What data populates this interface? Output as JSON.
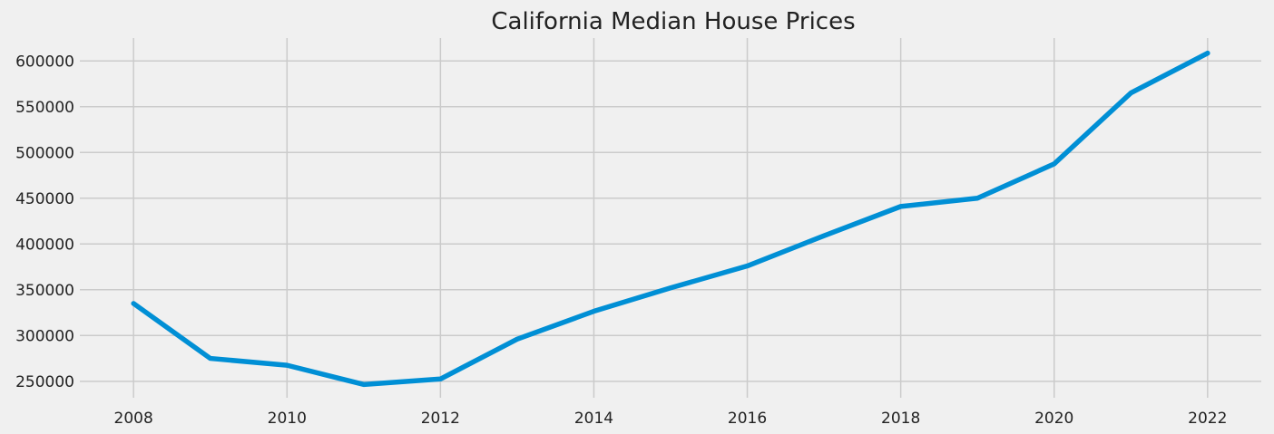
{
  "chart_data": {
    "type": "line",
    "title": "California Median House Prices",
    "xlabel": "",
    "ylabel": "",
    "x": [
      2008,
      2009,
      2010,
      2011,
      2012,
      2013,
      2014,
      2015,
      2016,
      2017,
      2018,
      2019,
      2020,
      2021,
      2022
    ],
    "series": [
      {
        "values": [
          335000,
          275000,
          267500,
          246500,
          252500,
          296000,
          326500,
          352000,
          376000,
          409000,
          441000,
          450000,
          487500,
          565000,
          608500
        ],
        "color": "#008fd5"
      }
    ],
    "xlim": [
      2007.3,
      2022.7
    ],
    "ylim": [
      232000,
      625000
    ],
    "xticks": [
      "2008",
      "2010",
      "2012",
      "2014",
      "2016",
      "2018",
      "2020",
      "2022"
    ],
    "yticks": [
      "250000",
      "300000",
      "350000",
      "400000",
      "450000",
      "500000",
      "550000",
      "600000"
    ],
    "grid": true,
    "legend": false,
    "background": "#f0f0f0",
    "grid_color": "#cbcbcb"
  }
}
